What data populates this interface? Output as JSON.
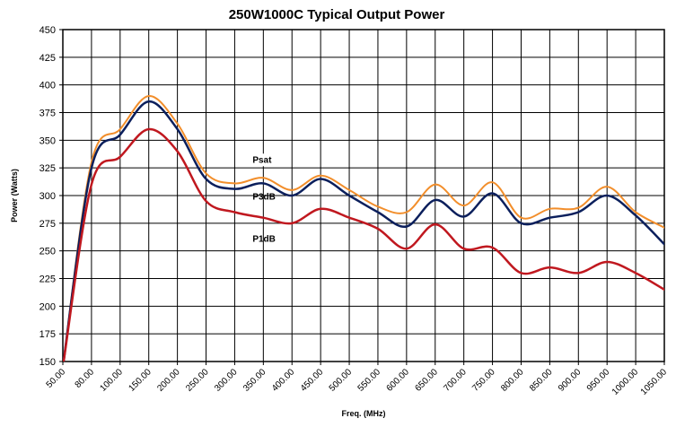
{
  "chart_data": {
    "type": "line",
    "title": "250W1000C Typical Output Power",
    "xlabel": "Freq. (MHz)",
    "ylabel": "Power (Watts)",
    "xlim": [
      50,
      1050
    ],
    "ylim": [
      150,
      450
    ],
    "grid": true,
    "x_ticks": [
      "50.00",
      "80.00",
      "100.00",
      "150.00",
      "200.00",
      "250.00",
      "300.00",
      "350.00",
      "400.00",
      "450.00",
      "500.00",
      "550.00",
      "600.00",
      "650.00",
      "700.00",
      "750.00",
      "800.00",
      "850.00",
      "900.00",
      "950.00",
      "1000.00",
      "1050.00"
    ],
    "y_ticks": [
      "150",
      "175",
      "200",
      "225",
      "250",
      "275",
      "300",
      "325",
      "350",
      "375",
      "400",
      "425",
      "450"
    ],
    "colors": {
      "Psat": "#F28E2B",
      "P3dB": "#0B1F5C",
      "P1dB": "#C0181F",
      "grid": "#000000"
    },
    "series": [
      {
        "name": "Psat",
        "x": [
          50,
          80,
          100,
          150,
          200,
          250,
          300,
          350,
          400,
          450,
          500,
          550,
          600,
          650,
          700,
          750,
          800,
          850,
          900,
          950,
          1000,
          1050
        ],
        "values": [
          145,
          330,
          360,
          390,
          365,
          320,
          311,
          316,
          305,
          318,
          305,
          290,
          285,
          310,
          291,
          312,
          280,
          288,
          289,
          308,
          285,
          271
        ]
      },
      {
        "name": "P3dB",
        "x": [
          50,
          80,
          100,
          150,
          200,
          250,
          300,
          350,
          400,
          450,
          500,
          550,
          600,
          650,
          700,
          750,
          800,
          850,
          900,
          950,
          1000,
          1050
        ],
        "values": [
          145,
          325,
          355,
          385,
          360,
          315,
          306,
          311,
          300,
          315,
          300,
          285,
          272,
          296,
          281,
          302,
          275,
          280,
          285,
          300,
          282,
          256
        ]
      },
      {
        "name": "P1dB",
        "x": [
          50,
          80,
          100,
          150,
          200,
          250,
          300,
          350,
          400,
          450,
          500,
          550,
          600,
          650,
          700,
          750,
          800,
          850,
          900,
          950,
          1000,
          1050
        ],
        "values": [
          145,
          310,
          335,
          360,
          340,
          295,
          285,
          280,
          275,
          288,
          280,
          270,
          252,
          274,
          252,
          253,
          230,
          235,
          230,
          240,
          230,
          215
        ]
      }
    ]
  }
}
